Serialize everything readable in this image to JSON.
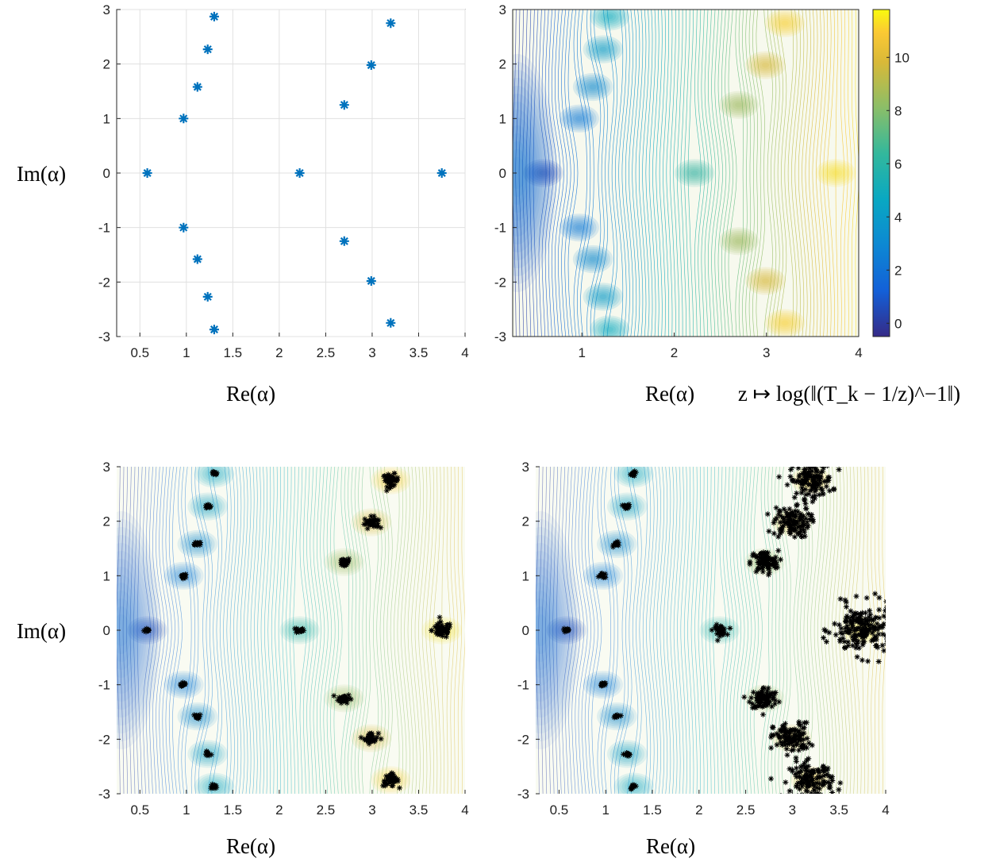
{
  "chart_data": [
    {
      "panel": "top-left",
      "type": "scatter",
      "xlabel": "Re(α)",
      "ylabel": "Im(α)",
      "xlim": [
        0.25,
        4
      ],
      "ylim": [
        -3,
        3
      ],
      "xticks": [
        "0.5",
        "1",
        "1.5",
        "2",
        "2.5",
        "3",
        "3.5",
        "4"
      ],
      "yticks": [
        "3",
        "2",
        "1",
        "0",
        "-1",
        "-2",
        "-3"
      ],
      "grid": true,
      "marker": "*",
      "marker_color": "#0072bd",
      "points": [
        {
          "x": 0.58,
          "y": 0
        },
        {
          "x": 0.97,
          "y": 1.0
        },
        {
          "x": 0.97,
          "y": -1.0
        },
        {
          "x": 1.12,
          "y": 1.58
        },
        {
          "x": 1.12,
          "y": -1.58
        },
        {
          "x": 1.23,
          "y": 2.27
        },
        {
          "x": 1.23,
          "y": -2.27
        },
        {
          "x": 1.3,
          "y": 2.87
        },
        {
          "x": 1.3,
          "y": -2.87
        },
        {
          "x": 2.22,
          "y": 0
        },
        {
          "x": 2.7,
          "y": 1.25
        },
        {
          "x": 2.7,
          "y": -1.25
        },
        {
          "x": 2.99,
          "y": 1.98
        },
        {
          "x": 2.99,
          "y": -1.98
        },
        {
          "x": 3.2,
          "y": 2.75
        },
        {
          "x": 3.2,
          "y": -2.75
        },
        {
          "x": 3.75,
          "y": 0
        }
      ]
    },
    {
      "panel": "top-right",
      "type": "heatmap",
      "subtype": "contour",
      "xlabel": "Re(α)",
      "caption": "z ↦ log(‖(T_k − 1/z)^−1‖)",
      "xlim": [
        0.25,
        4
      ],
      "ylim": [
        -3,
        3
      ],
      "xticks": [
        "1",
        "2",
        "3",
        "4"
      ],
      "yticks": [
        "3",
        "2",
        "1",
        "0",
        "-1",
        "-2",
        "-3"
      ],
      "colorbar_ticks": [
        "10",
        "8",
        "6",
        "4",
        "2",
        "0"
      ],
      "colorbar_range": [
        -0.5,
        11.8
      ],
      "colormap": "parula"
    },
    {
      "panel": "bottom-left",
      "type": "heatmap",
      "subtype": "contour-with-scatter",
      "xlabel": "Re(α)",
      "ylabel": "Im(α)",
      "xlim": [
        0.25,
        4
      ],
      "ylim": [
        -3,
        3
      ],
      "xticks": [
        "0.5",
        "1",
        "1.5",
        "2",
        "2.5",
        "3",
        "3.5",
        "4"
      ],
      "yticks": [
        "3",
        "2",
        "1",
        "0",
        "-1",
        "-2",
        "-3"
      ],
      "marker": "*",
      "marker_color": "#000000"
    },
    {
      "panel": "bottom-right",
      "type": "heatmap",
      "subtype": "contour-with-scatter",
      "xlabel": "Re(α)",
      "xlim": [
        0.25,
        4
      ],
      "ylim": [
        -3,
        3
      ],
      "xticks": [
        "0.5",
        "1",
        "1.5",
        "2",
        "2.5",
        "3",
        "3.5",
        "4"
      ],
      "yticks": [
        "3",
        "2",
        "1",
        "0",
        "-1",
        "-2",
        "-3"
      ],
      "marker": "*",
      "marker_color": "#000000"
    }
  ]
}
